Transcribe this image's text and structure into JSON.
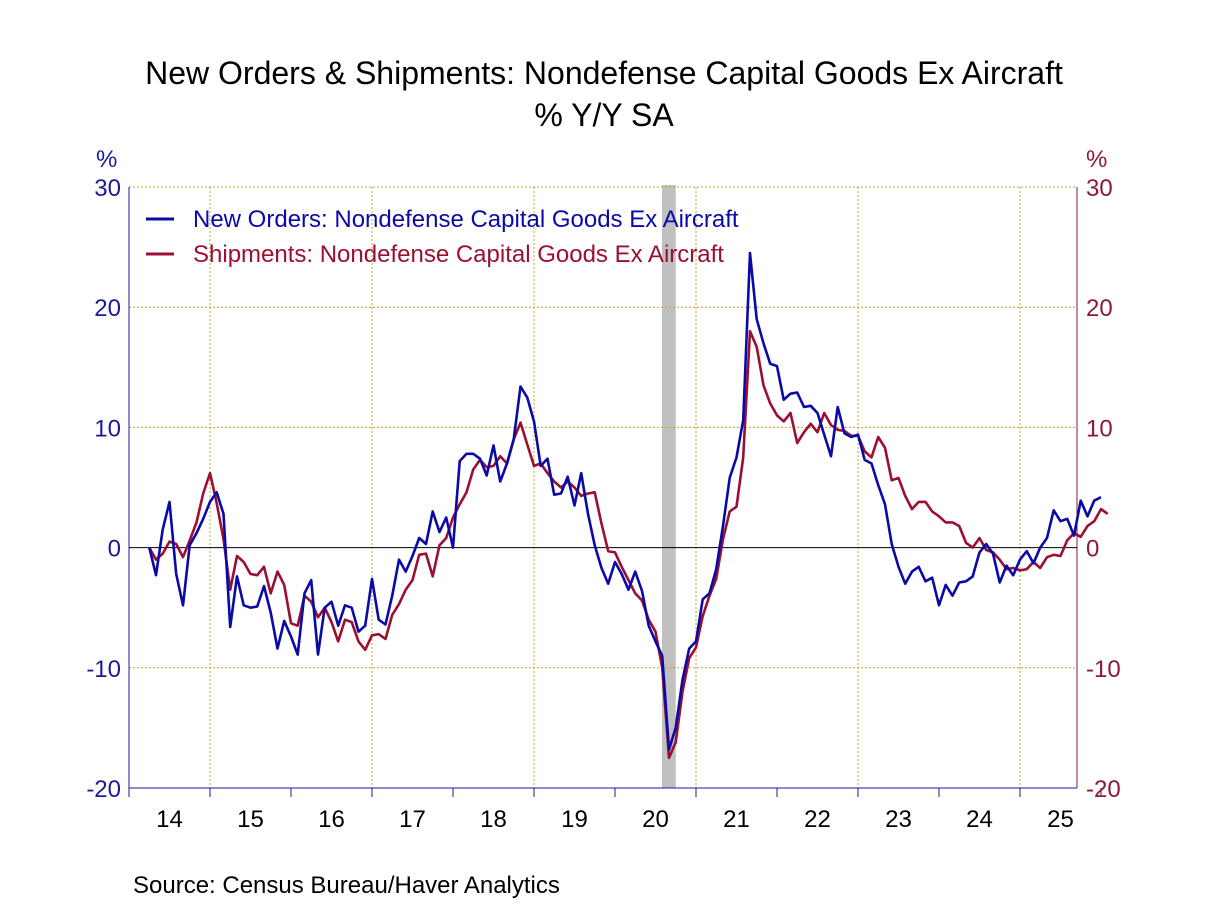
{
  "chart_data": {
    "type": "line",
    "title": "New Orders & Shipments: Nondefense Capital Goods Ex Aircraft",
    "subtitle": "% Y/Y   SA",
    "unit_left": "%",
    "unit_right": "%",
    "source": "Source:  Census Bureau/Haver Analytics",
    "ylim": [
      -20,
      30
    ],
    "yticks": [
      -20,
      -10,
      0,
      10,
      20,
      30
    ],
    "xlim": [
      2013.7,
      2025.6
    ],
    "year_labels": [
      "14",
      "15",
      "16",
      "17",
      "18",
      "19",
      "20",
      "21",
      "22",
      "23",
      "24",
      "25"
    ],
    "grid": true,
    "legend_position": "top-left",
    "recession_shading": [
      2020.08,
      2020.25
    ],
    "colors": {
      "orders": "#0a0aa8",
      "shipments": "#9b1030",
      "grid": "#c8a020",
      "recession": "#c0c0c0",
      "left_axis": "#1a1a9a",
      "right_axis": "#8b1a3a"
    },
    "series": [
      {
        "name": "New Orders: Nondefense Capital Goods Ex Aircraft",
        "color": "#0a0aa8",
        "start": 2013.75,
        "step": 0.08333,
        "values": [
          0.0,
          -2.3,
          1.5,
          3.8,
          -2.2,
          -4.8,
          0.2,
          1.2,
          2.4,
          3.8,
          4.6,
          2.8,
          -6.6,
          -2.4,
          -4.8,
          -5.0,
          -4.9,
          -3.2,
          -5.4,
          -8.4,
          -6.1,
          -7.4,
          -8.9,
          -3.8,
          -2.7,
          -8.9,
          -5.0,
          -4.5,
          -6.5,
          -4.8,
          -5.0,
          -7.0,
          -6.5,
          -2.6,
          -6.0,
          -6.4,
          -4.0,
          -1.0,
          -2.0,
          -0.7,
          0.8,
          0.3,
          3.0,
          1.3,
          2.5,
          0.0,
          7.2,
          7.8,
          7.8,
          7.4,
          6.0,
          8.5,
          5.5,
          7.0,
          9.0,
          13.4,
          12.5,
          10.5,
          6.8,
          7.4,
          4.4,
          4.5,
          5.9,
          3.5,
          6.2,
          2.8,
          0.2,
          -1.7,
          -3.0,
          -1.2,
          -2.2,
          -3.5,
          -2.0,
          -3.6,
          -6.5,
          -7.8,
          -9.0,
          -16.8,
          -15.0,
          -11.0,
          -8.4,
          -7.8,
          -4.3,
          -3.8,
          -1.8,
          1.8,
          5.8,
          7.5,
          10.6,
          24.5,
          19.0,
          17.0,
          15.3,
          15.1,
          12.3,
          12.8,
          12.9,
          11.7,
          11.8,
          11.2,
          9.4,
          7.6,
          11.7,
          9.5,
          9.2,
          9.4,
          7.3,
          7.0,
          5.2,
          3.6,
          0.3,
          -1.6,
          -3.0,
          -2.0,
          -1.6,
          -2.8,
          -2.5,
          -4.8,
          -3.1,
          -4.0,
          -2.9,
          -2.8,
          -2.4,
          -0.4,
          0.3,
          -0.5,
          -2.9,
          -1.5,
          -2.3,
          -1.0,
          -0.3,
          -1.3,
          0.0,
          0.8,
          3.1,
          2.2,
          2.4,
          1.0,
          3.9,
          2.6,
          3.9,
          4.2
        ]
      },
      {
        "name": "Shipments: Nondefense Capital Goods Ex Aircraft",
        "color": "#9b1030",
        "start": 2013.75,
        "step": 0.08333,
        "values": [
          0.0,
          -1.0,
          -0.5,
          0.5,
          0.3,
          -0.8,
          0.6,
          2.1,
          4.5,
          6.2,
          3.7,
          0.7,
          -3.5,
          -0.7,
          -1.2,
          -2.2,
          -2.3,
          -1.6,
          -3.8,
          -2.0,
          -3.1,
          -6.3,
          -6.5,
          -4.0,
          -4.5,
          -5.8,
          -5.0,
          -6.2,
          -7.8,
          -6.0,
          -6.2,
          -7.8,
          -8.5,
          -7.3,
          -7.2,
          -7.6,
          -5.6,
          -4.7,
          -3.5,
          -2.7,
          -0.6,
          -0.5,
          -2.4,
          0.2,
          0.8,
          2.5,
          3.6,
          4.6,
          6.5,
          7.3,
          6.7,
          6.8,
          7.6,
          7.0,
          9.0,
          10.4,
          8.6,
          6.8,
          7.0,
          6.2,
          5.5,
          5.0,
          5.5,
          5.0,
          4.3,
          4.5,
          4.6,
          2.0,
          -0.3,
          -0.4,
          -1.6,
          -2.7,
          -3.8,
          -4.4,
          -6.0,
          -7.0,
          -10.0,
          -17.5,
          -16.2,
          -12.0,
          -9.2,
          -8.3,
          -5.7,
          -4.0,
          -2.6,
          0.7,
          3.0,
          3.4,
          7.5,
          18.0,
          16.7,
          13.5,
          12.0,
          11.0,
          10.5,
          11.2,
          8.7,
          9.6,
          10.3,
          9.6,
          11.2,
          10.2,
          9.8,
          9.7,
          9.3,
          9.3,
          8.0,
          7.5,
          9.2,
          8.3,
          5.6,
          5.8,
          4.3,
          3.2,
          3.8,
          3.8,
          3.0,
          2.6,
          2.1,
          2.1,
          1.8,
          0.4,
          0.0,
          0.8,
          -0.2,
          -0.4,
          -1.0,
          -1.8,
          -1.7,
          -1.9,
          -1.8,
          -1.2,
          -1.7,
          -0.8,
          -0.6,
          -0.7,
          0.6,
          1.2,
          0.9,
          1.8,
          2.2,
          3.2,
          2.8
        ]
      }
    ]
  }
}
